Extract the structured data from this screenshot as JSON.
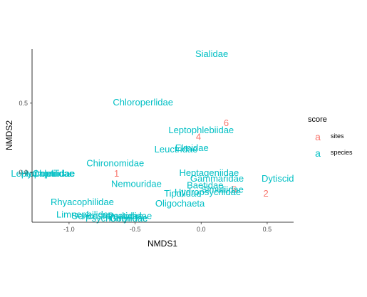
{
  "chart_data": {
    "type": "scatter",
    "title": "",
    "xlabel": "NMDS1",
    "ylabel": "NMDS2",
    "xlim": [
      -1.28,
      0.7
    ],
    "ylim": [
      -0.36,
      0.89
    ],
    "xticks": [
      -1.0,
      -0.5,
      0.0,
      0.5
    ],
    "xtick_labels": [
      "-1.0",
      "-0.5",
      "0.0",
      "0.5"
    ],
    "yticks": [
      0.0,
      0.5
    ],
    "ytick_labels": [
      "0.0",
      "0.5"
    ],
    "grid": false,
    "legend": {
      "title": "score",
      "position": "right",
      "key_glyph": "a",
      "entries": [
        {
          "name": "sites",
          "color": "#F8766D"
        },
        {
          "name": "species",
          "color": "#00BFC4"
        }
      ]
    },
    "series": [
      {
        "name": "sites",
        "color": "#F8766D",
        "points": [
          {
            "label": "1",
            "x": -0.64,
            "y": -0.005
          },
          {
            "label": "2",
            "x": 0.49,
            "y": -0.15
          },
          {
            "label": "4",
            "x": -0.02,
            "y": 0.26
          },
          {
            "label": "5",
            "x": 0.25,
            "y": -0.12
          },
          {
            "label": "6",
            "x": 0.19,
            "y": 0.36
          }
        ]
      },
      {
        "name": "species",
        "color": "#00BFC4",
        "points": [
          {
            "label": "Sialidae",
            "x": 0.08,
            "y": 0.86
          },
          {
            "label": "Chloroperlidae",
            "x": -0.44,
            "y": 0.51
          },
          {
            "label": "Leptophlebiidae",
            "x": 0.0,
            "y": 0.31
          },
          {
            "label": "Leuctridae",
            "x": -0.19,
            "y": 0.17
          },
          {
            "label": "Elmidae",
            "x": -0.07,
            "y": 0.18
          },
          {
            "label": "Chironomidae",
            "x": -0.65,
            "y": 0.07
          },
          {
            "label": "Heptageniidae",
            "x": 0.06,
            "y": 0.0
          },
          {
            "label": "Gammaridae",
            "x": 0.12,
            "y": -0.04
          },
          {
            "label": "Dytiscid",
            "x": 0.58,
            "y": -0.04
          },
          {
            "label": "Nemouridae",
            "x": -0.49,
            "y": -0.08
          },
          {
            "label": "Baetidae",
            "x": 0.03,
            "y": -0.09
          },
          {
            "label": "Simuliidae",
            "x": 0.16,
            "y": -0.12
          },
          {
            "label": "Tipulidae",
            "x": -0.14,
            "y": -0.15
          },
          {
            "label": "Hydropsychidae",
            "x": 0.05,
            "y": -0.14
          },
          {
            "label": "Oligochaeta",
            "x": -0.16,
            "y": -0.22
          },
          {
            "label": "Rhyacophilidae",
            "x": -0.9,
            "y": -0.21
          },
          {
            "label": "Limnephilidae",
            "x": -0.88,
            "y": -0.3
          },
          {
            "label": "Sericostomatidae",
            "x": -0.71,
            "y": -0.31
          },
          {
            "label": "Perlodidae",
            "x": -0.54,
            "y": -0.31
          },
          {
            "label": "Psychomyiidae",
            "x": -0.64,
            "y": -0.33
          },
          {
            "label": "Goeridae",
            "x": -0.55,
            "y": -0.33
          },
          {
            "label": "Leptophlebidae",
            "x": -1.2,
            "y": -0.005
          },
          {
            "label": "Hydroptilidae",
            "x": -1.16,
            "y": -0.005
          },
          {
            "label": "Capniidae",
            "x": -1.12,
            "y": -0.005
          }
        ]
      }
    ]
  }
}
